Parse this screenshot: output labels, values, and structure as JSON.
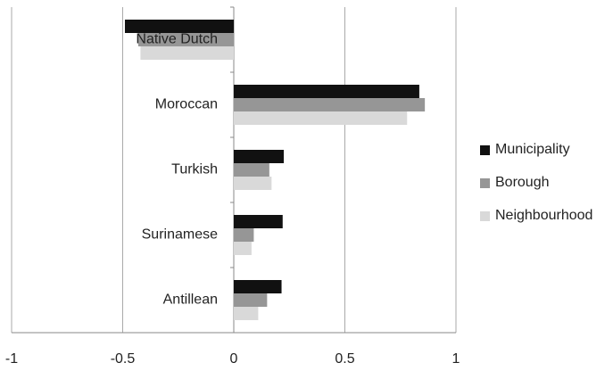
{
  "chart_data": {
    "type": "barh",
    "categories": [
      "Native Dutch",
      "Moroccan",
      "Turkish",
      "Surinamese",
      "Antillean"
    ],
    "series": [
      {
        "name": "Municipality",
        "color": "#111111",
        "values": [
          -0.49,
          0.835,
          0.225,
          0.22,
          0.215
        ]
      },
      {
        "name": "Borough",
        "color": "#969696",
        "values": [
          -0.43,
          0.86,
          0.16,
          0.09,
          0.15
        ]
      },
      {
        "name": "Neighbourhood",
        "color": "#d9d9d9",
        "values": [
          -0.42,
          0.78,
          0.17,
          0.08,
          0.11
        ]
      }
    ],
    "xlim": [
      -1,
      1
    ],
    "xticks": [
      -1,
      -0.5,
      0,
      0.5,
      1
    ],
    "grid": true,
    "legend": "right"
  }
}
